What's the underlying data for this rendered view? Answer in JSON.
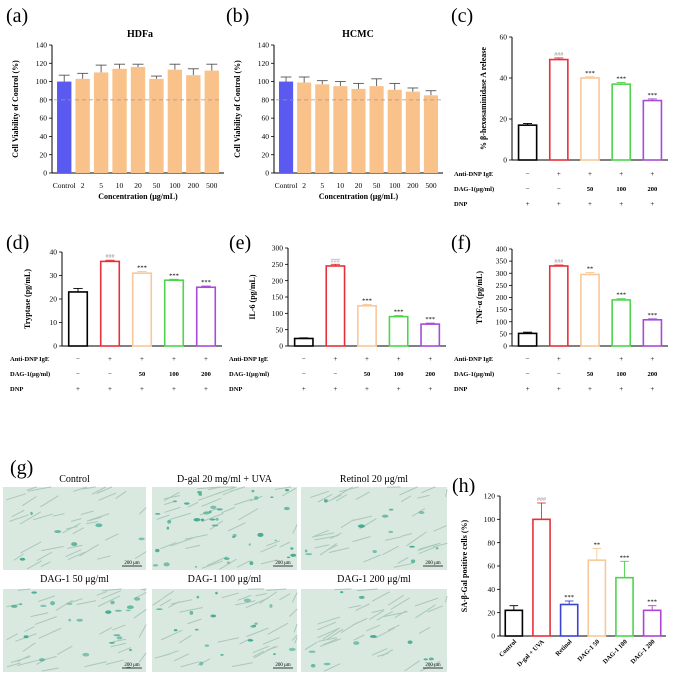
{
  "colors": {
    "blue": "#5a5af0",
    "orange": "#f9c28b",
    "black": "#000000",
    "red": "#e8303a",
    "peach": "#f9c89a",
    "green": "#4ed44e",
    "purple": "#a64cd6",
    "royal": "#3a44d6",
    "magenta": "#b043d8",
    "micro_bg": "#d9e9e0",
    "micro_stain": "#3aa68c"
  },
  "conditions": {
    "row_labels": [
      "Anti-DNP IgE",
      "DAG-1(μg/ml)",
      "DNP"
    ],
    "antigen": [
      "−",
      "+",
      "+",
      "+",
      "+"
    ],
    "dose": [
      "−",
      "−",
      "50",
      "100",
      "200"
    ],
    "dnp": [
      "+",
      "+",
      "+",
      "+",
      "+"
    ]
  },
  "chart_data": [
    {
      "id": "a",
      "panel": "(a)",
      "type": "bar",
      "title": "HDFa",
      "xlabel": "Concentration (μg/mL)",
      "ylabel": "Cell Viability of Control (%)",
      "ylim": [
        0,
        140
      ],
      "yticks": [
        0,
        20,
        40,
        60,
        80,
        100,
        120,
        140
      ],
      "categories": [
        "Control",
        "2",
        "5",
        "10",
        "20",
        "50",
        "100",
        "200",
        "500"
      ],
      "values": [
        100,
        103,
        110,
        114,
        116,
        103,
        113,
        107,
        112
      ],
      "errors": [
        7,
        6,
        8,
        5,
        3,
        3,
        6,
        7,
        7
      ],
      "bar_colors": [
        "blue",
        "orange",
        "orange",
        "orange",
        "orange",
        "orange",
        "orange",
        "orange",
        "orange"
      ],
      "reference_line": 80
    },
    {
      "id": "b",
      "panel": "(b)",
      "type": "bar",
      "title": "HCMC",
      "xlabel": "Concentration (μg/mL)",
      "ylabel": "Cell Viability of Control (%)",
      "ylim": [
        0,
        140
      ],
      "yticks": [
        0,
        20,
        40,
        60,
        80,
        100,
        120,
        140
      ],
      "categories": [
        "Control",
        "2",
        "5",
        "10",
        "20",
        "50",
        "100",
        "200",
        "500"
      ],
      "values": [
        100,
        99,
        97,
        95,
        92,
        95,
        91,
        89,
        85
      ],
      "errors": [
        5,
        6,
        4,
        5,
        6,
        8,
        7,
        4,
        5
      ],
      "bar_colors": [
        "blue",
        "orange",
        "orange",
        "orange",
        "orange",
        "orange",
        "orange",
        "orange",
        "orange"
      ],
      "reference_line": 80
    },
    {
      "id": "c",
      "panel": "(c)",
      "type": "bar",
      "ylabel": "% β-hexosaminidase A release",
      "ylim": [
        0,
        60
      ],
      "yticks": [
        0,
        20,
        40,
        60
      ],
      "values": [
        17,
        49,
        40,
        37,
        29
      ],
      "errors": [
        0.8,
        0.8,
        0.6,
        0.8,
        0.8
      ],
      "bar_colors": [
        "black",
        "red",
        "peach",
        "green",
        "purple"
      ],
      "significance": [
        "",
        "###",
        "***",
        "***",
        "***"
      ]
    },
    {
      "id": "d",
      "panel": "(d)",
      "type": "bar",
      "ylabel": "Tryptase (pg/mL)",
      "ylim": [
        0,
        40
      ],
      "yticks": [
        0,
        10,
        20,
        30,
        40
      ],
      "values": [
        23,
        36,
        31,
        28,
        25
      ],
      "errors": [
        1.5,
        0.5,
        0.7,
        0.4,
        0.5
      ],
      "bar_colors": [
        "black",
        "red",
        "peach",
        "green",
        "purple"
      ],
      "significance": [
        "",
        "###",
        "***",
        "***",
        "***"
      ]
    },
    {
      "id": "e",
      "panel": "(e)",
      "type": "bar",
      "ylabel": "IL-6 (pg/mL)",
      "ylim": [
        0,
        300
      ],
      "yticks": [
        0,
        50,
        100,
        150,
        200,
        250,
        300
      ],
      "values": [
        23,
        245,
        123,
        90,
        67
      ],
      "errors": [
        2,
        5,
        4,
        3,
        3
      ],
      "bar_colors": [
        "black",
        "red",
        "peach",
        "green",
        "purple"
      ],
      "significance": [
        "",
        "###",
        "***",
        "***",
        "***"
      ]
    },
    {
      "id": "f",
      "panel": "(f)",
      "type": "bar",
      "ylabel": "TNF-α (pg/mL)",
      "ylim": [
        0,
        400
      ],
      "yticks": [
        0,
        50,
        100,
        150,
        200,
        250,
        300,
        350,
        400
      ],
      "values": [
        52,
        330,
        295,
        190,
        108
      ],
      "errors": [
        5,
        4,
        8,
        5,
        4
      ],
      "bar_colors": [
        "black",
        "red",
        "peach",
        "green",
        "purple"
      ],
      "significance": [
        "",
        "###",
        "**",
        "***",
        "***"
      ]
    },
    {
      "id": "h",
      "panel": "(h)",
      "type": "bar",
      "ylabel": "SA-β-Gal positive cells (%)",
      "ylim": [
        0,
        120
      ],
      "yticks": [
        0,
        20,
        40,
        60,
        80,
        100,
        120
      ],
      "categories": [
        "Control",
        "D-gal + UVA",
        "Retinol",
        "DAG-1 50",
        "DAG-1 100",
        "DAG-1 200"
      ],
      "values": [
        22,
        100,
        27,
        65,
        50,
        22
      ],
      "errors": [
        4,
        14,
        3,
        10,
        14,
        4
      ],
      "bar_colors": [
        "black",
        "red",
        "royal",
        "peach",
        "green",
        "magenta"
      ],
      "significance": [
        "",
        "###",
        "***",
        "**",
        "***",
        "***"
      ]
    }
  ],
  "micrographs": {
    "panel": "(g)",
    "scale_bar": "200 μm",
    "images": [
      {
        "title": "Control",
        "stain": 0.15
      },
      {
        "title": "D-gal 20 mg/ml + UVA",
        "stain": 0.9
      },
      {
        "title": "Retinol 20 μg/ml",
        "stain": 0.3
      },
      {
        "title": "DAG-1 50 μg/ml",
        "stain": 0.55
      },
      {
        "title": "DAG-1 100 μg/ml",
        "stain": 0.45
      },
      {
        "title": "DAG-1 200 μg/ml",
        "stain": 0.25
      }
    ]
  }
}
